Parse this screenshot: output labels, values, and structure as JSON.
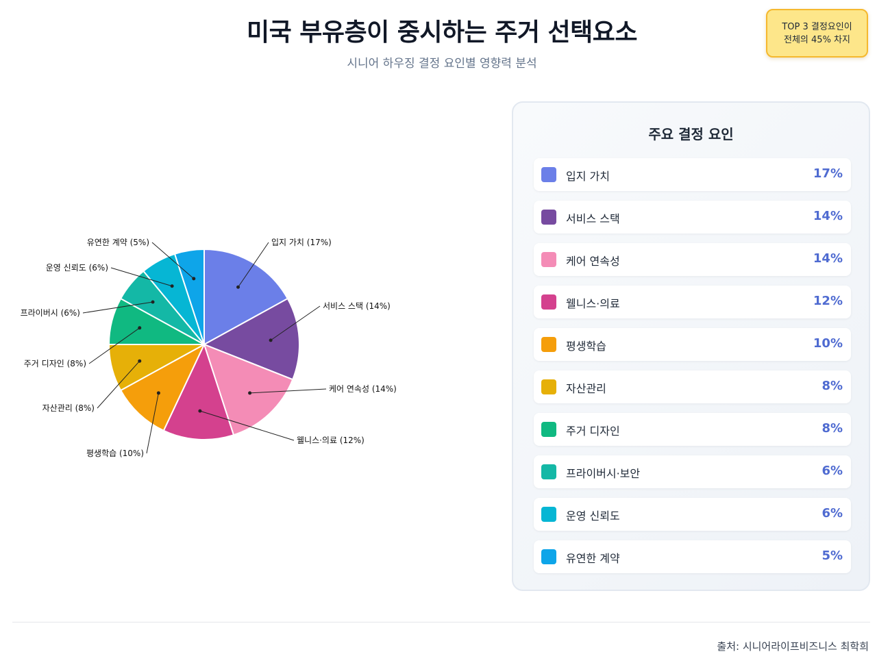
{
  "header": {
    "title": "미국 부유층이 중시하는 주거 선택요소",
    "subtitle": "시니어 하우징 결정 요인별 영향력 분석"
  },
  "badge": {
    "line1": "TOP 3 결정요인이",
    "line2": "전체의 45% 차지"
  },
  "chart_data": {
    "type": "pie",
    "title": "",
    "categories": [
      "입지 가치",
      "서비스 스택",
      "케어 연속성",
      "웰니스·의료",
      "평생학습",
      "자산관리",
      "주거 디자인",
      "프라이버시",
      "운영 신뢰도",
      "유연한 계약"
    ],
    "values": [
      17,
      14,
      14,
      12,
      10,
      8,
      8,
      6,
      6,
      5
    ],
    "labels": [
      "입지 가치 (17%)",
      "서비스 스택 (14%)",
      "케어 연속성 (14%)",
      "웰니스·의료 (12%)",
      "평생학습 (10%)",
      "자산관리 (8%)",
      "주거 디자인 (8%)",
      "프라이버시 (6%)",
      "운영 신뢰도 (6%)",
      "유연한 계약 (5%)"
    ],
    "colors": [
      "#6b7fe8",
      "#774ba0",
      "#f48cb6",
      "#d4418e",
      "#f59e0b",
      "#e6b008",
      "#10b981",
      "#14b8a6",
      "#06b6d4",
      "#0ea5e9"
    ],
    "unit": "%",
    "legend": "none"
  },
  "panel": {
    "title": "주요 결정 요인",
    "items": [
      {
        "label": "입지 가치",
        "value": "17%",
        "color": "#6b7fe8"
      },
      {
        "label": "서비스 스택",
        "value": "14%",
        "color": "#774ba0"
      },
      {
        "label": "케어 연속성",
        "value": "14%",
        "color": "#f48cb6"
      },
      {
        "label": "웰니스·의료",
        "value": "12%",
        "color": "#d4418e"
      },
      {
        "label": "평생학습",
        "value": "10%",
        "color": "#f59e0b"
      },
      {
        "label": "자산관리",
        "value": "8%",
        "color": "#e6b008"
      },
      {
        "label": "주거 디자인",
        "value": "8%",
        "color": "#10b981"
      },
      {
        "label": "프라이버시·보안",
        "value": "6%",
        "color": "#14b8a6"
      },
      {
        "label": "운영 신뢰도",
        "value": "6%",
        "color": "#06b6d4"
      },
      {
        "label": "유연한 계약",
        "value": "5%",
        "color": "#0ea5e9"
      }
    ]
  },
  "footer": {
    "source": "출처: 시니어라이프비즈니스 최학희"
  }
}
